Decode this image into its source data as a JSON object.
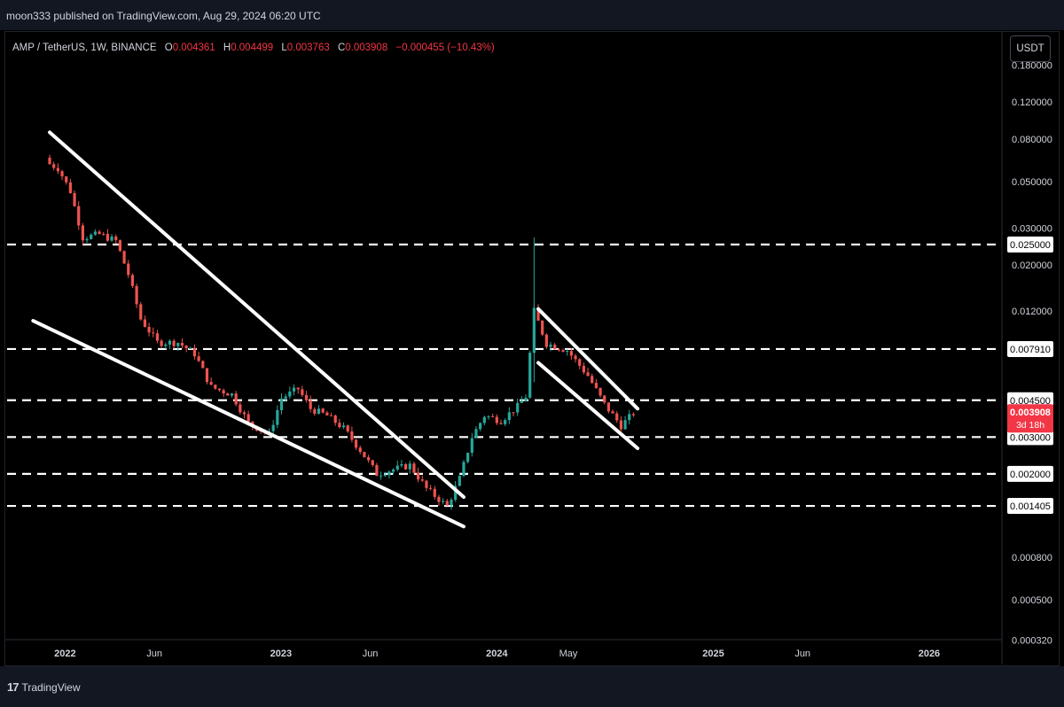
{
  "header": {
    "published": "moon333 published on TradingView.com, Aug 29, 2024 06:20 UTC"
  },
  "legend": {
    "symbol": "AMP / TetherUS, 1W, BINANCE",
    "open_label": "O",
    "open": "0.004361",
    "high_label": "H",
    "high": "0.004499",
    "low_label": "L",
    "low": "0.003763",
    "close_label": "C",
    "close": "0.003908",
    "change": "−0.000455 (−10.43%)"
  },
  "currency_button": "USDT",
  "footer": {
    "brand": "TradingView",
    "logo_icon": "tradingview-logo-icon"
  },
  "colors": {
    "up": "#26a69a",
    "down": "#ef5350",
    "line": "#ffffff",
    "price_tag": "#f23645"
  },
  "chart_data": {
    "type": "candlestick",
    "title": "",
    "xlabel": "",
    "ylabel": "",
    "y_scale": "log",
    "ylim": [
      0.00025,
      0.25
    ],
    "xlim": [
      "2021-10-01",
      "2026-05-01"
    ],
    "grid": false,
    "y_ticks": [
      "0.180000",
      "0.120000",
      "0.080000",
      "0.050000",
      "0.030000",
      "0.020000",
      "0.012000",
      "0.000800",
      "0.000500",
      "0.000320"
    ],
    "x_ticks": [
      {
        "label": "2022",
        "date": "2022-01-01"
      },
      {
        "label": "Jun",
        "date": "2022-06-01"
      },
      {
        "label": "2023",
        "date": "2023-01-01"
      },
      {
        "label": "Jun",
        "date": "2023-06-01"
      },
      {
        "label": "2024",
        "date": "2024-01-01"
      },
      {
        "label": "May",
        "date": "2024-05-01"
      },
      {
        "label": "2025",
        "date": "2025-01-01"
      },
      {
        "label": "Jun",
        "date": "2025-06-01"
      },
      {
        "label": "2026",
        "date": "2026-01-01"
      }
    ],
    "horizontal_levels": [
      "0.025000",
      "0.007910",
      "0.004500",
      "0.003000",
      "0.002000",
      "0.001405"
    ],
    "last_price": {
      "value": "0.003908",
      "countdown": "3d 18h"
    },
    "trendlines": [
      {
        "name": "falling-wedge-upper",
        "from": {
          "date": "2021-12-06",
          "price": 0.086
        },
        "to": {
          "date": "2023-11-06",
          "price": 0.00155
        }
      },
      {
        "name": "falling-wedge-lower",
        "from": {
          "date": "2021-11-08",
          "price": 0.0108
        },
        "to": {
          "date": "2023-11-06",
          "price": 0.00112
        }
      },
      {
        "name": "channel-upper",
        "from": {
          "date": "2024-03-11",
          "price": 0.0123
        },
        "to": {
          "date": "2024-08-26",
          "price": 0.0041
        }
      },
      {
        "name": "channel-lower",
        "from": {
          "date": "2024-03-11",
          "price": 0.0068
        },
        "to": {
          "date": "2024-08-26",
          "price": 0.00265
        }
      }
    ],
    "close_path": [
      {
        "date": "2021-12-06",
        "price": 0.062
      },
      {
        "date": "2021-12-27",
        "price": 0.058
      },
      {
        "date": "2022-01-17",
        "price": 0.045
      },
      {
        "date": "2022-02-07",
        "price": 0.027
      },
      {
        "date": "2022-03-07",
        "price": 0.028
      },
      {
        "date": "2022-04-04",
        "price": 0.026
      },
      {
        "date": "2022-04-25",
        "price": 0.018
      },
      {
        "date": "2022-05-16",
        "price": 0.011
      },
      {
        "date": "2022-06-13",
        "price": 0.0085
      },
      {
        "date": "2022-07-18",
        "price": 0.0085
      },
      {
        "date": "2022-08-15",
        "price": 0.0075
      },
      {
        "date": "2022-09-12",
        "price": 0.0052
      },
      {
        "date": "2022-10-17",
        "price": 0.0048
      },
      {
        "date": "2022-11-14",
        "price": 0.0035
      },
      {
        "date": "2022-12-19",
        "price": 0.0031
      },
      {
        "date": "2023-01-09",
        "price": 0.0046
      },
      {
        "date": "2023-02-06",
        "price": 0.0051
      },
      {
        "date": "2023-02-27",
        "price": 0.0041
      },
      {
        "date": "2023-03-27",
        "price": 0.0038
      },
      {
        "date": "2023-04-24",
        "price": 0.0033
      },
      {
        "date": "2023-05-22",
        "price": 0.0026
      },
      {
        "date": "2023-06-19",
        "price": 0.002
      },
      {
        "date": "2023-07-17",
        "price": 0.0021
      },
      {
        "date": "2023-08-14",
        "price": 0.0022
      },
      {
        "date": "2023-09-11",
        "price": 0.0017
      },
      {
        "date": "2023-10-16",
        "price": 0.0014
      },
      {
        "date": "2023-11-06",
        "price": 0.0019
      },
      {
        "date": "2023-11-27",
        "price": 0.003
      },
      {
        "date": "2023-12-18",
        "price": 0.0038
      },
      {
        "date": "2024-01-15",
        "price": 0.0036
      },
      {
        "date": "2024-02-12",
        "price": 0.0042
      },
      {
        "date": "2024-02-26",
        "price": 0.0047
      },
      {
        "date": "2024-03-11",
        "price": 0.012
      },
      {
        "date": "2024-04-01",
        "price": 0.0084
      },
      {
        "date": "2024-05-06",
        "price": 0.0078
      },
      {
        "date": "2024-06-10",
        "price": 0.0059
      },
      {
        "date": "2024-07-08",
        "price": 0.0043
      },
      {
        "date": "2024-08-05",
        "price": 0.0034
      },
      {
        "date": "2024-08-26",
        "price": 0.0039
      }
    ]
  }
}
